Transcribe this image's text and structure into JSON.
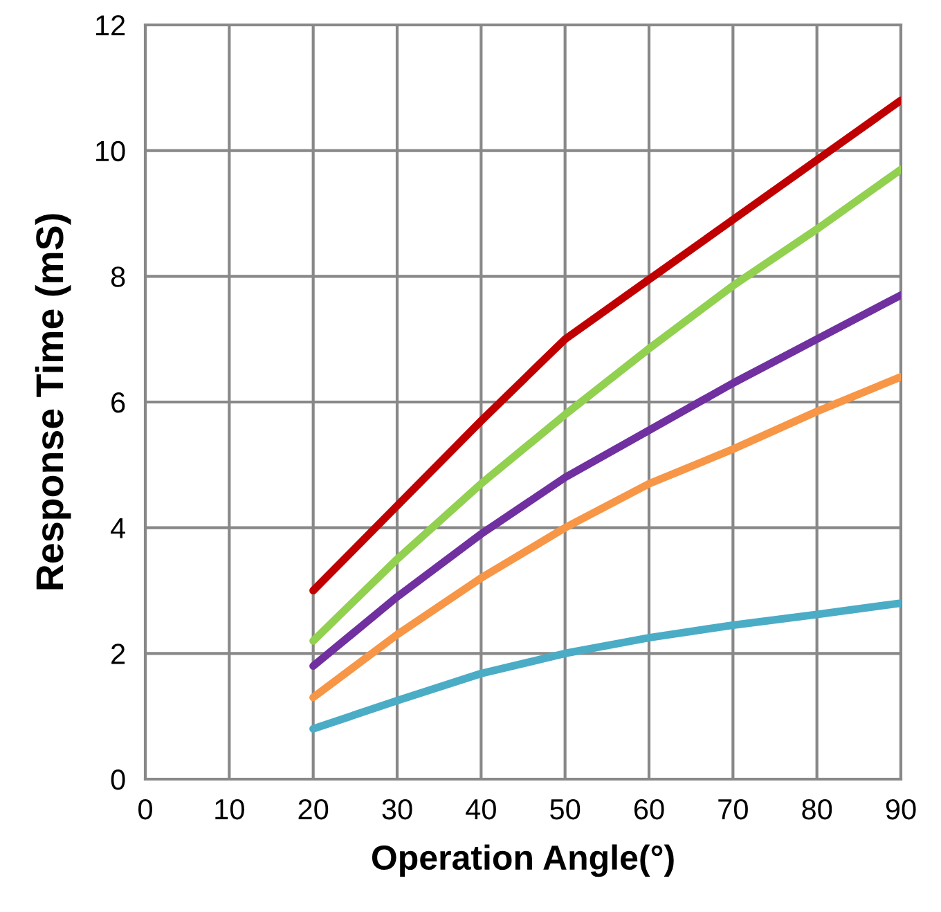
{
  "chart_data": {
    "type": "line",
    "xlabel": "Operation Angle(°)",
    "ylabel": "Response Time (mS)",
    "x": [
      20,
      30,
      40,
      50,
      60,
      70,
      80,
      90
    ],
    "series": [
      {
        "color": "#c00000",
        "values": [
          3.0,
          4.35,
          5.7,
          7.0,
          7.95,
          8.9,
          9.85,
          10.8
        ]
      },
      {
        "color": "#92d050",
        "values": [
          2.2,
          3.5,
          4.7,
          5.8,
          6.85,
          7.85,
          8.75,
          9.7
        ]
      },
      {
        "color": "#7030a0",
        "values": [
          1.8,
          2.9,
          3.9,
          4.8,
          5.55,
          6.3,
          7.0,
          7.7
        ]
      },
      {
        "color": "#f79646",
        "values": [
          1.3,
          2.3,
          3.2,
          4.0,
          4.7,
          5.25,
          5.85,
          6.4
        ]
      },
      {
        "color": "#4bacc6",
        "values": [
          0.8,
          1.25,
          1.68,
          2.0,
          2.25,
          2.45,
          2.62,
          2.8
        ]
      }
    ],
    "xlim": [
      0,
      90
    ],
    "xticks": [
      0,
      10,
      20,
      30,
      40,
      50,
      60,
      70,
      80,
      90
    ],
    "ylim": [
      0,
      12
    ],
    "yticks": [
      0,
      2,
      4,
      6,
      8,
      10,
      12
    ],
    "grid": true,
    "marker": "none",
    "line_style": "solid"
  }
}
